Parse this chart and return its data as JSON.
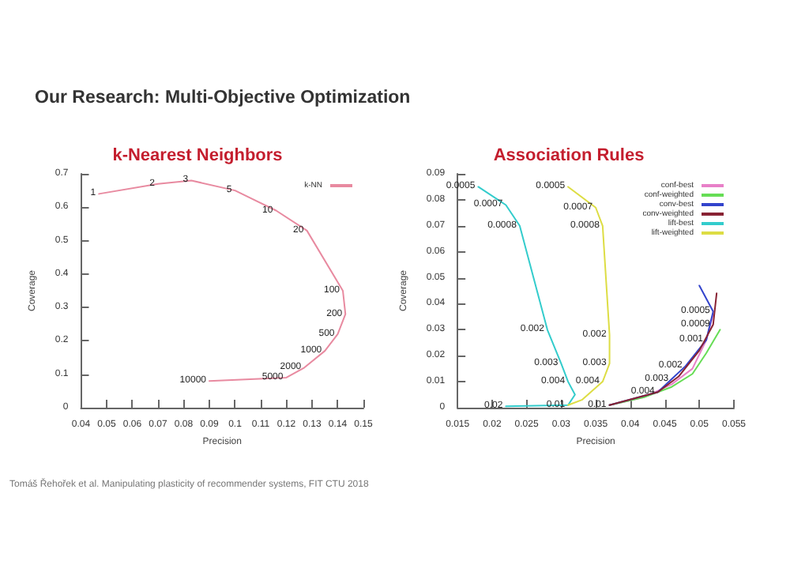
{
  "chart_data": [
    {
      "type": "line",
      "title": "k-Nearest Neighbors",
      "xlabel": "Precision",
      "ylabel": "Coverage",
      "xlim": [
        0.04,
        0.15
      ],
      "xticks": [
        0.04,
        0.05,
        0.06,
        0.07,
        0.08,
        0.09,
        0.1,
        0.11,
        0.12,
        0.13,
        0.14,
        0.15
      ],
      "ylim": [
        0,
        0.7
      ],
      "yticks": [
        0,
        0.1,
        0.2,
        0.3,
        0.4,
        0.5,
        0.6,
        0.7
      ],
      "grid": false,
      "legend": "top right",
      "marker": "none",
      "line_style": "solid",
      "annotations": [
        "Our Research: Multi-Objective Optimization",
        {
          "text": "1",
          "x": 0.047,
          "y": 0.64
        },
        {
          "text": "2",
          "x": 0.07,
          "y": 0.67
        },
        {
          "text": "3",
          "x": 0.083,
          "y": 0.68
        },
        {
          "text": "5",
          "x": 0.1,
          "y": 0.65
        },
        {
          "text": "10",
          "x": 0.116,
          "y": 0.59
        },
        {
          "text": "20",
          "x": 0.128,
          "y": 0.53
        },
        {
          "text": "100",
          "x": 0.142,
          "y": 0.35
        },
        {
          "text": "200",
          "x": 0.143,
          "y": 0.28
        },
        {
          "text": "500",
          "x": 0.14,
          "y": 0.22
        },
        {
          "text": "1000",
          "x": 0.135,
          "y": 0.17
        },
        {
          "text": "2000",
          "x": 0.127,
          "y": 0.12
        },
        {
          "text": "5000",
          "x": 0.12,
          "y": 0.09
        },
        {
          "text": "10000",
          "x": 0.09,
          "y": 0.08
        }
      ],
      "series": [
        {
          "name": "k-NN",
          "color": "#e88aa0",
          "x": [
            0.047,
            0.07,
            0.083,
            0.1,
            0.116,
            0.128,
            0.142,
            0.143,
            0.14,
            0.135,
            0.127,
            0.12,
            0.09
          ],
          "values": [
            0.64,
            0.67,
            0.68,
            0.65,
            0.59,
            0.53,
            0.35,
            0.28,
            0.22,
            0.17,
            0.12,
            0.09,
            0.08
          ]
        }
      ]
    },
    {
      "type": "line",
      "title": "Association Rules",
      "xlabel": "Precision",
      "ylabel": "Coverage",
      "xlim": [
        0.015,
        0.055
      ],
      "xticks": [
        0.015,
        0.02,
        0.025,
        0.03,
        0.035,
        0.04,
        0.045,
        0.05,
        0.055
      ],
      "ylim": [
        0,
        0.09
      ],
      "yticks": [
        0,
        0.01,
        0.02,
        0.03,
        0.04,
        0.05,
        0.06,
        0.07,
        0.08,
        0.09
      ],
      "grid": false,
      "legend": "top right",
      "marker": "none",
      "line_style": "solid",
      "annotations": [
        "Tomáš Řehořek et al. Manipulating plasticity of recommender systems, FIT CTU 2018",
        {
          "text": "0.0005",
          "x": 0.018,
          "y": 0.085
        },
        {
          "text": "0.0007",
          "x": 0.022,
          "y": 0.078
        },
        {
          "text": "0.0008",
          "x": 0.024,
          "y": 0.07
        },
        {
          "text": "0.002",
          "x": 0.028,
          "y": 0.03
        },
        {
          "text": "0.003",
          "x": 0.03,
          "y": 0.017
        },
        {
          "text": "0.004",
          "x": 0.031,
          "y": 0.01
        },
        {
          "text": "0.01",
          "x": 0.031,
          "y": 0.001
        },
        {
          "text": "0.02",
          "x": 0.022,
          "y": 0.0005
        },
        {
          "text": "0.0005",
          "x": 0.031,
          "y": 0.085
        },
        {
          "text": "0.0007",
          "x": 0.035,
          "y": 0.077
        },
        {
          "text": "0.0008",
          "x": 0.036,
          "y": 0.07
        },
        {
          "text": "0.002",
          "x": 0.037,
          "y": 0.028
        },
        {
          "text": "0.003",
          "x": 0.037,
          "y": 0.017
        },
        {
          "text": "0.004",
          "x": 0.036,
          "y": 0.01
        },
        {
          "text": "0.01",
          "x": 0.037,
          "y": 0.001
        },
        {
          "text": "0.004",
          "x": 0.044,
          "y": 0.006
        },
        {
          "text": "0.003",
          "x": 0.046,
          "y": 0.011
        },
        {
          "text": "0.002",
          "x": 0.048,
          "y": 0.016
        },
        {
          "text": "0.001",
          "x": 0.051,
          "y": 0.026
        },
        {
          "text": "0.0009",
          "x": 0.052,
          "y": 0.032
        },
        {
          "text": "0.0005",
          "x": 0.052,
          "y": 0.037
        }
      ],
      "series": [
        {
          "name": "conf-best",
          "color": "#e880c8",
          "x": [
            0.037,
            0.042,
            0.046,
            0.049,
            0.051,
            0.052
          ],
          "values": [
            0.001,
            0.004,
            0.009,
            0.015,
            0.026,
            0.036
          ]
        },
        {
          "name": "conf-weighted",
          "color": "#66dd55",
          "x": [
            0.037,
            0.042,
            0.046,
            0.049,
            0.051,
            0.053
          ],
          "values": [
            0.001,
            0.004,
            0.008,
            0.013,
            0.021,
            0.03
          ]
        },
        {
          "name": "conv-best",
          "color": "#3344cc",
          "x": [
            0.037,
            0.044,
            0.046,
            0.048,
            0.051,
            0.052,
            0.05
          ],
          "values": [
            0.001,
            0.006,
            0.011,
            0.016,
            0.026,
            0.037,
            0.047
          ]
        },
        {
          "name": "conv-weighted",
          "color": "#882233",
          "x": [
            0.037,
            0.044,
            0.047,
            0.05,
            0.052,
            0.0525
          ],
          "values": [
            0.001,
            0.006,
            0.012,
            0.022,
            0.032,
            0.044
          ]
        },
        {
          "name": "lift-best",
          "color": "#33cccc",
          "x": [
            0.018,
            0.022,
            0.024,
            0.028,
            0.03,
            0.031,
            0.032,
            0.031,
            0.022
          ],
          "values": [
            0.085,
            0.078,
            0.07,
            0.03,
            0.017,
            0.01,
            0.005,
            0.001,
            0.0005
          ]
        },
        {
          "name": "lift-weighted",
          "color": "#dddd44",
          "x": [
            0.031,
            0.035,
            0.036,
            0.037,
            0.037,
            0.036,
            0.033,
            0.031
          ],
          "values": [
            0.085,
            0.077,
            0.07,
            0.028,
            0.017,
            0.01,
            0.003,
            0.001
          ]
        }
      ]
    }
  ]
}
